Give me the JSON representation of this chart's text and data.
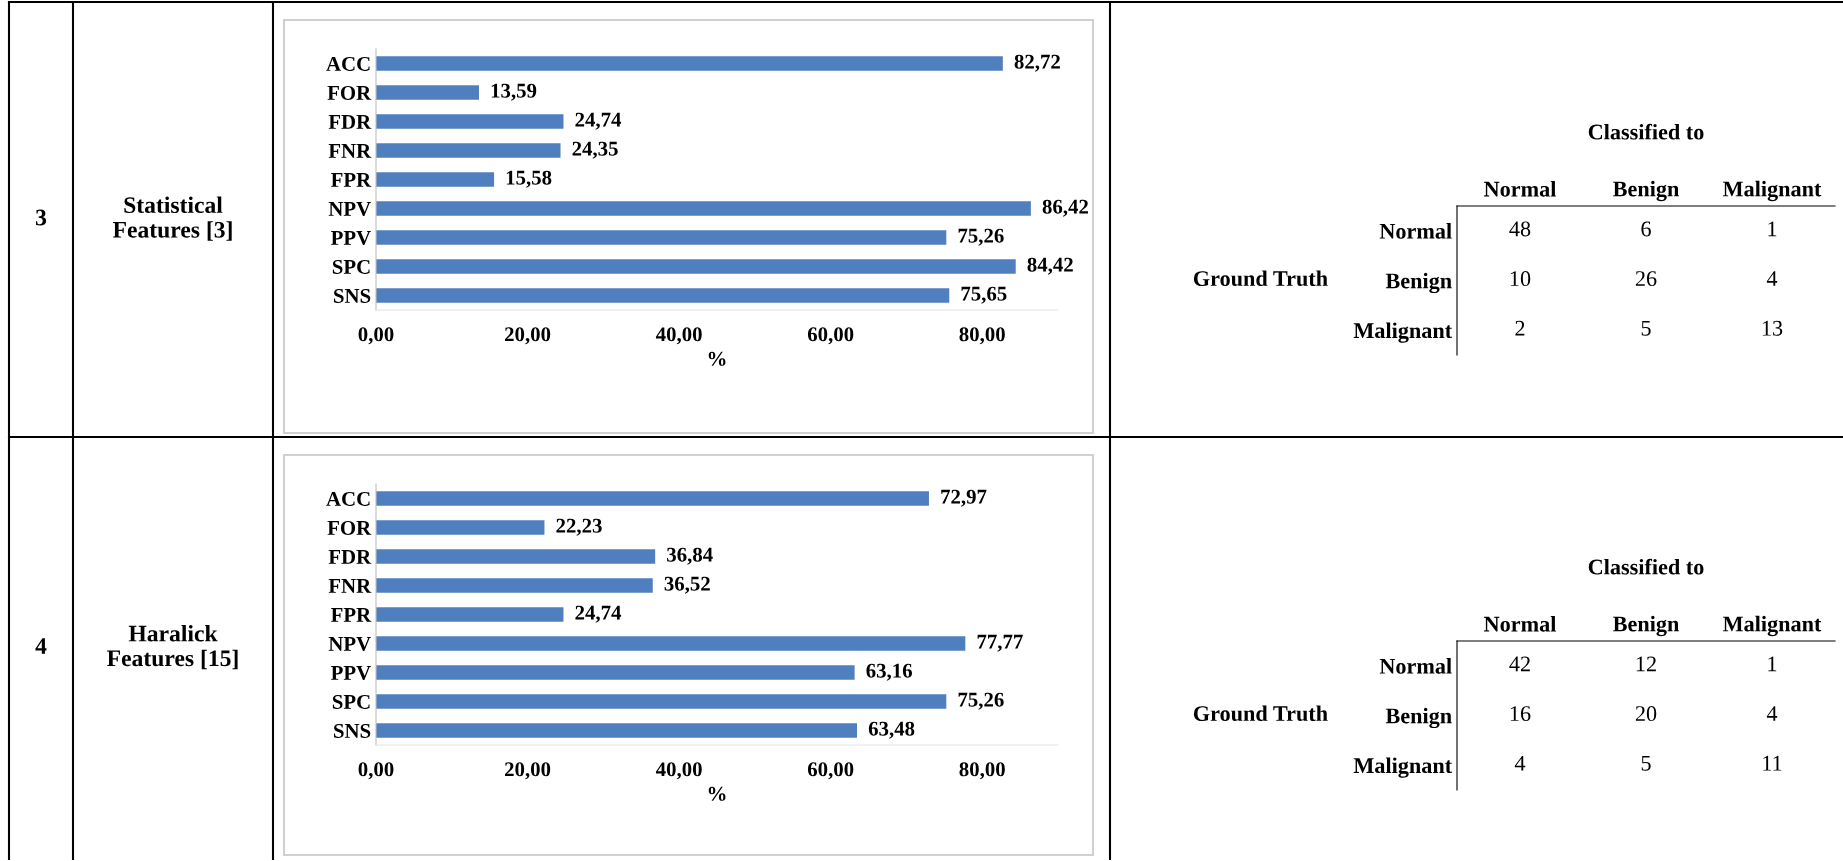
{
  "chart_data": [
    {
      "type": "other",
      "annotations": [
        "3",
        "Statistical Features [3]"
      ]
    },
    {
      "type": "bar",
      "orientation": "horizontal",
      "xlabel": "%",
      "categories": [
        "ACC",
        "FOR",
        "FDR",
        "FNR",
        "FPR",
        "NPV",
        "PPV",
        "SPC",
        "SNS"
      ],
      "values": [
        82.72,
        13.59,
        24.74,
        24.35,
        15.58,
        86.42,
        75.26,
        84.42,
        75.65
      ],
      "value_labels": [
        "82,72",
        "13,59",
        "24,74",
        "24,35",
        "15,58",
        "86,42",
        "75,26",
        "84,42",
        "75,65"
      ],
      "color": "#4f7fbf",
      "xlim": [
        0,
        90
      ],
      "xticks": [
        {
          "value": 0,
          "label": "0,00"
        },
        {
          "value": 20,
          "label": "20,00"
        },
        {
          "value": 40,
          "label": "40,00"
        },
        {
          "value": 60,
          "label": "60,00"
        },
        {
          "value": 80,
          "label": "80,00"
        }
      ],
      "grid": false
    },
    {
      "type": "heatmap",
      "title": "Classified to",
      "ylabel": "Ground Truth",
      "categories": [
        "Normal",
        "Benign",
        "Malignant"
      ],
      "y_categories": [
        "Normal",
        "Benign",
        "Malignant"
      ],
      "cells": [
        [
          48,
          6,
          1
        ],
        [
          10,
          26,
          4
        ],
        [
          2,
          5,
          13
        ]
      ],
      "data_labels": true
    },
    {
      "type": "other",
      "annotations": [
        "4",
        "Haralick Features [15]"
      ]
    },
    {
      "type": "bar",
      "orientation": "horizontal",
      "xlabel": "%",
      "categories": [
        "ACC",
        "FOR",
        "FDR",
        "FNR",
        "FPR",
        "NPV",
        "PPV",
        "SPC",
        "SNS"
      ],
      "values": [
        72.97,
        22.23,
        36.84,
        36.52,
        24.74,
        77.77,
        63.16,
        75.26,
        63.48
      ],
      "value_labels": [
        "72,97",
        "22,23",
        "36,84",
        "36,52",
        "24,74",
        "77,77",
        "63,16",
        "75,26",
        "63,48"
      ],
      "color": "#4f7fbf",
      "xlim": [
        0,
        90
      ],
      "xticks": [
        {
          "value": 0,
          "label": "0,00"
        },
        {
          "value": 20,
          "label": "20,00"
        },
        {
          "value": 40,
          "label": "40,00"
        },
        {
          "value": 60,
          "label": "60,00"
        },
        {
          "value": 80,
          "label": "80,00"
        }
      ],
      "grid": false
    },
    {
      "type": "heatmap",
      "title": "Classified to",
      "ylabel": "Ground Truth",
      "categories": [
        "Normal",
        "Benign",
        "Malignant"
      ],
      "y_categories": [
        "Normal",
        "Benign",
        "Malignant"
      ],
      "cells": [
        [
          42,
          12,
          1
        ],
        [
          16,
          20,
          4
        ],
        [
          4,
          5,
          11
        ]
      ],
      "data_labels": true
    }
  ]
}
